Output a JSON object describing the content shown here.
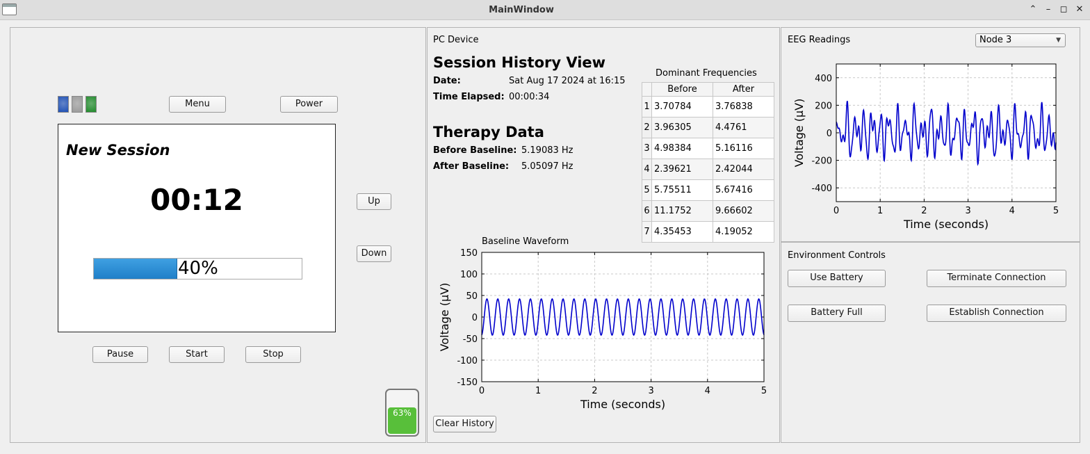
{
  "window": {
    "title": "MainWindow"
  },
  "device": {
    "menu_label": "Menu",
    "power_label": "Power",
    "up_label": "Up",
    "down_label": "Down",
    "pause_label": "Pause",
    "start_label": "Start",
    "stop_label": "Stop",
    "screen": {
      "title": "New Session",
      "timer": "00:12",
      "progress_percent": 40,
      "progress_text": "40%"
    },
    "leds": [
      {
        "color": "#1d4fb5"
      },
      {
        "color": "#9a9a9a"
      },
      {
        "color": "#1f8a2a"
      }
    ],
    "battery": {
      "percent": 63,
      "text": "63%",
      "color": "#58bf3a"
    }
  },
  "pc": {
    "section_label": "PC Device",
    "history_title": "Session History View",
    "date_label": "Date:",
    "date_value": "Sat Aug 17 2024 at 16:15",
    "elapsed_label": "Time Elapsed:",
    "elapsed_value": "00:00:34",
    "therapy_title": "Therapy Data",
    "before_label": "Before Baseline:",
    "before_value": "5.19083 Hz",
    "after_label": "After Baseline:",
    "after_value": "5.05097 Hz",
    "freq_title": "Dominant Frequencies",
    "freq_headers": [
      "Before",
      "After"
    ],
    "freq_rows": [
      {
        "idx": "1",
        "before": "3.70784",
        "after": "3.76838"
      },
      {
        "idx": "2",
        "before": "3.96305",
        "after": "4.4761"
      },
      {
        "idx": "3",
        "before": "4.98384",
        "after": "5.16116"
      },
      {
        "idx": "4",
        "before": "2.39621",
        "after": "2.42044"
      },
      {
        "idx": "5",
        "before": "5.75511",
        "after": "5.67416"
      },
      {
        "idx": "6",
        "before": "11.1752",
        "after": "9.66602"
      },
      {
        "idx": "7",
        "before": "4.35453",
        "after": "4.19052"
      }
    ],
    "clear_label": "Clear History"
  },
  "eeg": {
    "section_label": "EEG Readings",
    "node_selected": "Node 3"
  },
  "env": {
    "section_label": "Environment Controls",
    "use_battery_label": "Use Battery",
    "battery_full_label": "Battery Full",
    "terminate_label": "Terminate Connection",
    "establish_label": "Establish Connection"
  },
  "chart_data": [
    {
      "type": "line",
      "title": "Baseline Waveform",
      "xlabel": "Time (seconds)",
      "ylabel": "Voltage (µV)",
      "xlim": [
        0,
        5
      ],
      "ylim": [
        -150,
        150
      ],
      "xticks": [
        "0",
        "1",
        "2",
        "3",
        "4",
        "5"
      ],
      "yticks": [
        "150",
        "100",
        "50",
        "0",
        "-50",
        "-100",
        "-150"
      ],
      "grid": true,
      "series": [
        {
          "name": "baseline",
          "color": "#0000cc",
          "amplitude": 42,
          "frequency_hz": 5.19,
          "duration_s": 5
        }
      ]
    },
    {
      "type": "line",
      "title": "",
      "xlabel": "Time (seconds)",
      "ylabel": "Voltage (µV)",
      "xlim": [
        0,
        5
      ],
      "ylim": [
        -500,
        500
      ],
      "xticks": [
        "0",
        "1",
        "2",
        "3",
        "4",
        "5"
      ],
      "yticks": [
        "400",
        "200",
        "0",
        "-200",
        "-400"
      ],
      "grid": true,
      "series": [
        {
          "name": "eeg",
          "color": "#0000cc",
          "components": [
            {
              "amp": 110,
              "freq": 5.2
            },
            {
              "amp": 70,
              "freq": 7.9
            },
            {
              "amp": 45,
              "freq": 11.3
            },
            {
              "amp": 30,
              "freq": 3.1
            }
          ],
          "duration_s": 5
        }
      ]
    }
  ]
}
